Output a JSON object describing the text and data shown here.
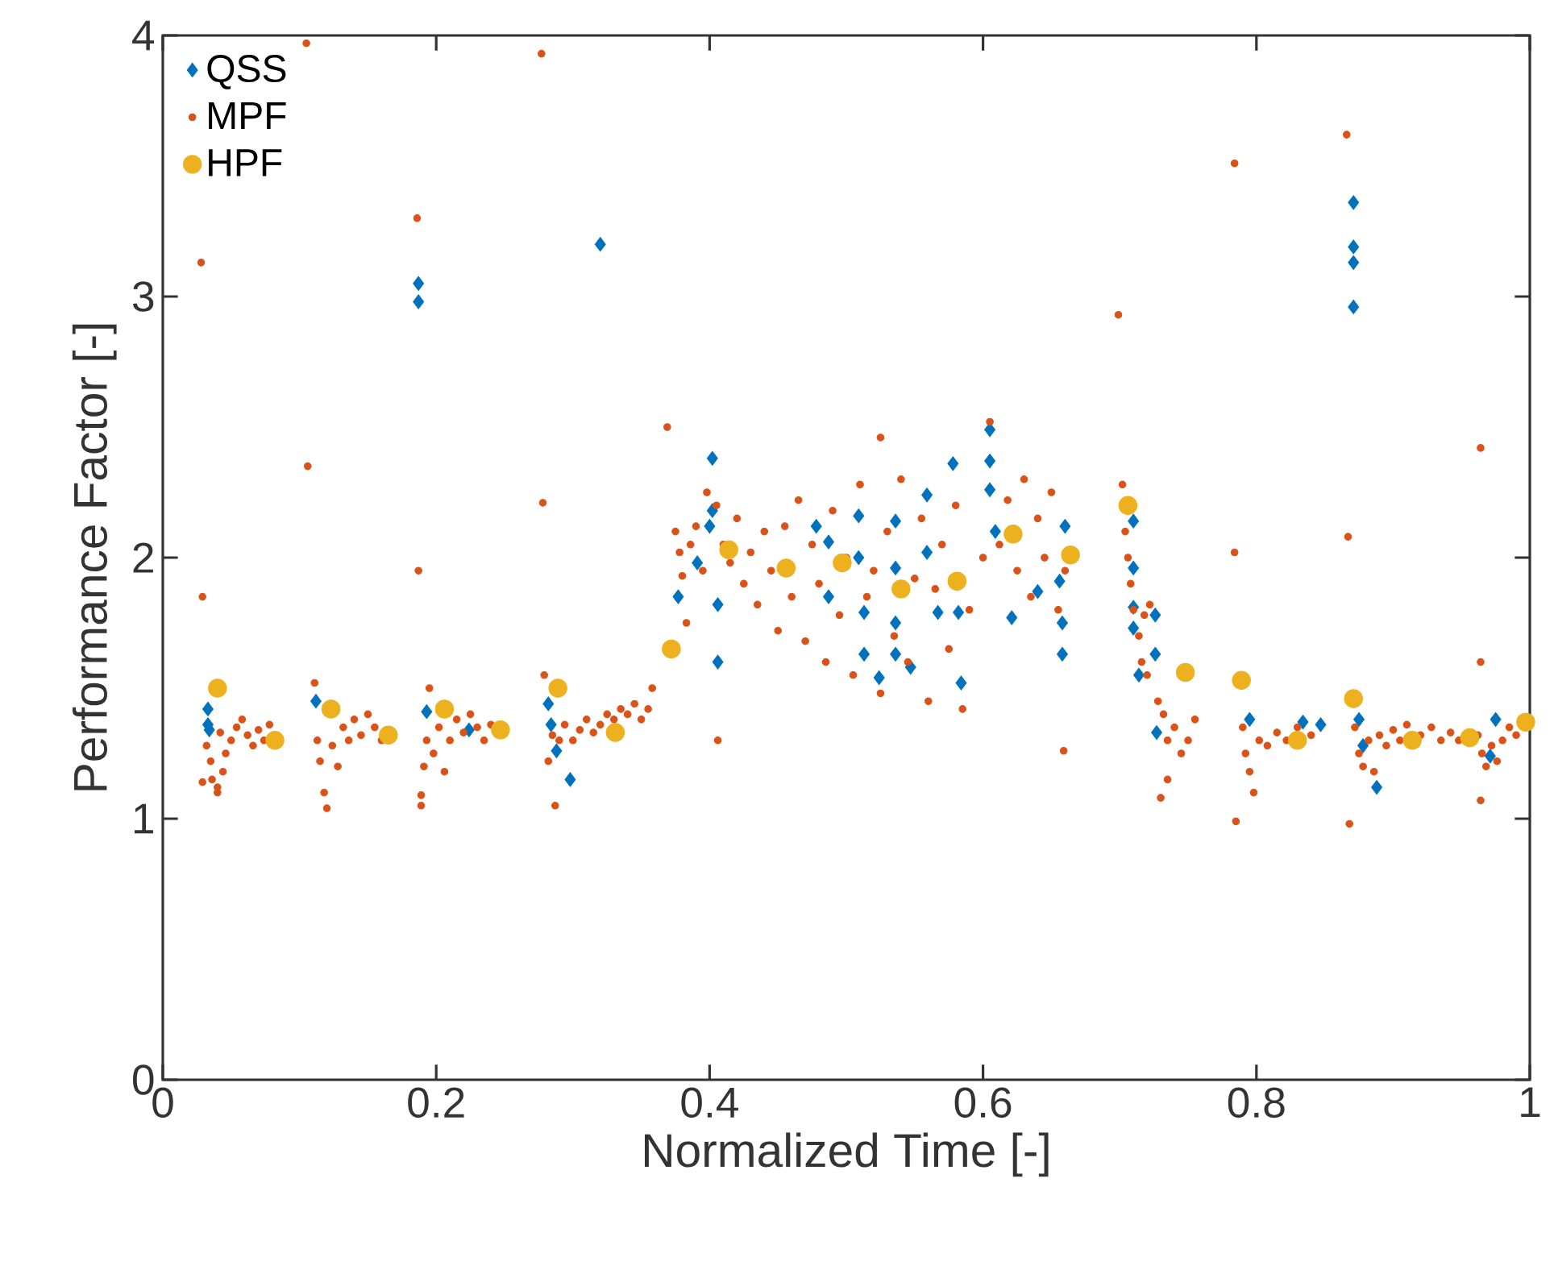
{
  "chart_data": {
    "type": "scatter",
    "xlabel": "Normalized Time [-]",
    "ylabel": "Performance Factor [-]",
    "xlim": [
      0,
      1
    ],
    "ylim": [
      0,
      4
    ],
    "xticks": [
      0,
      0.2,
      0.4,
      0.6,
      0.8,
      1
    ],
    "yticks": [
      0,
      1,
      2,
      3,
      4
    ],
    "grid": false,
    "legend": "top left",
    "series": [
      {
        "name": "QSS",
        "color": "#0072bd",
        "marker": "diamond",
        "x": [
          0.033,
          0.033,
          0.034,
          0.112,
          0.187,
          0.187,
          0.193,
          0.224,
          0.282,
          0.284,
          0.288,
          0.298,
          0.32,
          0.377,
          0.391,
          0.402,
          0.402,
          0.4,
          0.406,
          0.406,
          0.478,
          0.487,
          0.487,
          0.509,
          0.509,
          0.513,
          0.513,
          0.524,
          0.536,
          0.536,
          0.536,
          0.536,
          0.547,
          0.559,
          0.559,
          0.567,
          0.578,
          0.582,
          0.584,
          0.605,
          0.605,
          0.605,
          0.609,
          0.621,
          0.64,
          0.656,
          0.658,
          0.658,
          0.66,
          0.71,
          0.71,
          0.71,
          0.71,
          0.726,
          0.726,
          0.714,
          0.727,
          0.795,
          0.834,
          0.847,
          0.871,
          0.871,
          0.871,
          0.871,
          0.875,
          0.878,
          0.888,
          0.975,
          0.971
        ],
        "values": [
          1.42,
          1.36,
          1.34,
          1.45,
          3.05,
          2.98,
          1.41,
          1.34,
          1.44,
          1.36,
          1.26,
          1.15,
          3.2,
          1.85,
          1.98,
          2.38,
          2.18,
          2.12,
          1.82,
          1.6,
          2.12,
          2.06,
          1.85,
          2.16,
          2.0,
          1.79,
          1.63,
          1.54,
          2.14,
          1.96,
          1.75,
          1.63,
          1.58,
          2.24,
          2.02,
          1.79,
          2.36,
          1.79,
          1.52,
          2.49,
          2.37,
          2.26,
          2.1,
          1.77,
          1.87,
          1.91,
          1.75,
          1.63,
          2.12,
          2.14,
          1.96,
          1.81,
          1.73,
          1.78,
          1.63,
          1.55,
          1.33,
          1.38,
          1.37,
          1.36,
          3.36,
          3.19,
          3.13,
          2.96,
          1.38,
          1.28,
          1.12,
          1.38,
          1.24
        ]
      },
      {
        "name": "MPF",
        "color": "#d95319",
        "marker": "circle",
        "x": [
          0.105,
          0.277,
          0.186,
          0.028,
          0.106,
          0.278,
          0.187,
          0.029,
          0.866,
          0.784,
          0.699,
          0.964,
          0.867,
          0.784,
          0.964,
          0.785,
          0.868,
          0.964,
          0.369,
          0.406,
          0.659,
          0.525,
          0.029,
          0.04,
          0.032,
          0.035,
          0.036,
          0.04,
          0.042,
          0.046,
          0.05,
          0.054,
          0.058,
          0.062,
          0.066,
          0.07,
          0.074,
          0.078,
          0.044,
          0.111,
          0.113,
          0.115,
          0.118,
          0.12,
          0.124,
          0.128,
          0.132,
          0.136,
          0.14,
          0.145,
          0.15,
          0.155,
          0.16,
          0.189,
          0.189,
          0.191,
          0.193,
          0.195,
          0.198,
          0.202,
          0.206,
          0.21,
          0.215,
          0.22,
          0.225,
          0.23,
          0.235,
          0.24,
          0.279,
          0.282,
          0.285,
          0.287,
          0.29,
          0.294,
          0.3,
          0.305,
          0.31,
          0.315,
          0.32,
          0.325,
          0.33,
          0.335,
          0.34,
          0.345,
          0.35,
          0.355,
          0.358,
          0.375,
          0.378,
          0.38,
          0.383,
          0.386,
          0.39,
          0.395,
          0.398,
          0.405,
          0.41,
          0.415,
          0.42,
          0.425,
          0.43,
          0.435,
          0.44,
          0.445,
          0.45,
          0.455,
          0.46,
          0.465,
          0.47,
          0.475,
          0.48,
          0.485,
          0.49,
          0.495,
          0.5,
          0.505,
          0.51,
          0.515,
          0.52,
          0.525,
          0.53,
          0.535,
          0.54,
          0.545,
          0.55,
          0.555,
          0.56,
          0.565,
          0.57,
          0.575,
          0.58,
          0.585,
          0.59,
          0.6,
          0.605,
          0.612,
          0.618,
          0.625,
          0.63,
          0.635,
          0.64,
          0.645,
          0.65,
          0.655,
          0.66,
          0.702,
          0.704,
          0.706,
          0.708,
          0.71,
          0.714,
          0.718,
          0.722,
          0.716,
          0.72,
          0.728,
          0.732,
          0.735,
          0.74,
          0.745,
          0.735,
          0.75,
          0.755,
          0.73,
          0.79,
          0.792,
          0.795,
          0.798,
          0.802,
          0.808,
          0.815,
          0.822,
          0.83,
          0.84,
          0.872,
          0.875,
          0.878,
          0.882,
          0.886,
          0.89,
          0.895,
          0.9,
          0.905,
          0.91,
          0.92,
          0.928,
          0.935,
          0.942,
          0.948,
          0.962,
          0.965,
          0.968,
          0.972,
          0.976,
          0.98,
          0.985,
          0.99
        ],
        "values": [
          3.97,
          3.93,
          3.3,
          3.13,
          2.35,
          2.21,
          1.95,
          1.85,
          3.62,
          3.51,
          2.93,
          2.42,
          2.08,
          2.02,
          1.6,
          0.99,
          0.98,
          1.07,
          2.5,
          1.3,
          1.26,
          2.46,
          1.14,
          1.12,
          1.28,
          1.22,
          1.15,
          1.1,
          1.33,
          1.25,
          1.3,
          1.35,
          1.38,
          1.32,
          1.28,
          1.34,
          1.3,
          1.36,
          1.18,
          1.52,
          1.3,
          1.22,
          1.1,
          1.04,
          1.28,
          1.2,
          1.35,
          1.3,
          1.38,
          1.32,
          1.4,
          1.35,
          1.3,
          1.05,
          1.09,
          1.2,
          1.3,
          1.5,
          1.25,
          1.35,
          1.18,
          1.3,
          1.38,
          1.33,
          1.4,
          1.35,
          1.3,
          1.36,
          1.55,
          1.22,
          1.32,
          1.05,
          1.3,
          1.36,
          1.3,
          1.34,
          1.38,
          1.33,
          1.36,
          1.4,
          1.38,
          1.42,
          1.4,
          1.44,
          1.38,
          1.42,
          1.5,
          2.1,
          2.02,
          1.93,
          1.75,
          2.05,
          2.12,
          1.95,
          2.25,
          2.2,
          2.05,
          1.98,
          2.15,
          1.9,
          2.02,
          1.82,
          2.1,
          1.95,
          1.72,
          2.12,
          1.85,
          2.22,
          1.68,
          2.05,
          1.9,
          1.6,
          2.18,
          1.78,
          2.0,
          1.55,
          2.28,
          1.85,
          1.95,
          1.48,
          2.1,
          1.7,
          2.3,
          1.6,
          1.92,
          2.15,
          1.45,
          1.88,
          2.05,
          1.65,
          2.2,
          1.42,
          1.8,
          2.0,
          2.52,
          2.05,
          2.22,
          1.95,
          2.3,
          1.85,
          2.15,
          2.0,
          2.25,
          1.8,
          1.95,
          2.28,
          2.1,
          2.0,
          1.9,
          1.8,
          1.7,
          1.78,
          1.82,
          1.6,
          1.55,
          1.45,
          1.4,
          1.3,
          1.35,
          1.25,
          1.15,
          1.3,
          1.38,
          1.08,
          1.35,
          1.25,
          1.18,
          1.1,
          1.3,
          1.28,
          1.33,
          1.3,
          1.35,
          1.32,
          1.35,
          1.25,
          1.2,
          1.3,
          1.18,
          1.32,
          1.28,
          1.34,
          1.3,
          1.36,
          1.32,
          1.35,
          1.3,
          1.33,
          1.3,
          1.32,
          1.25,
          1.2,
          1.28,
          1.22,
          1.3,
          1.35,
          1.32
        ]
      },
      {
        "name": "HPF",
        "color": "#edb120",
        "marker": "circle",
        "x": [
          0.04,
          0.082,
          0.123,
          0.165,
          0.206,
          0.247,
          0.289,
          0.331,
          0.372,
          0.414,
          0.456,
          0.497,
          0.54,
          0.581,
          0.622,
          0.664,
          0.706,
          0.748,
          0.789,
          0.83,
          0.871,
          0.914,
          0.956,
          0.997
        ],
        "values": [
          1.5,
          1.3,
          1.42,
          1.32,
          1.42,
          1.34,
          1.5,
          1.33,
          1.65,
          2.03,
          1.96,
          1.98,
          1.88,
          1.91,
          2.09,
          2.01,
          2.2,
          1.56,
          1.53,
          1.3,
          1.46,
          1.3,
          1.31,
          1.37
        ]
      }
    ]
  }
}
